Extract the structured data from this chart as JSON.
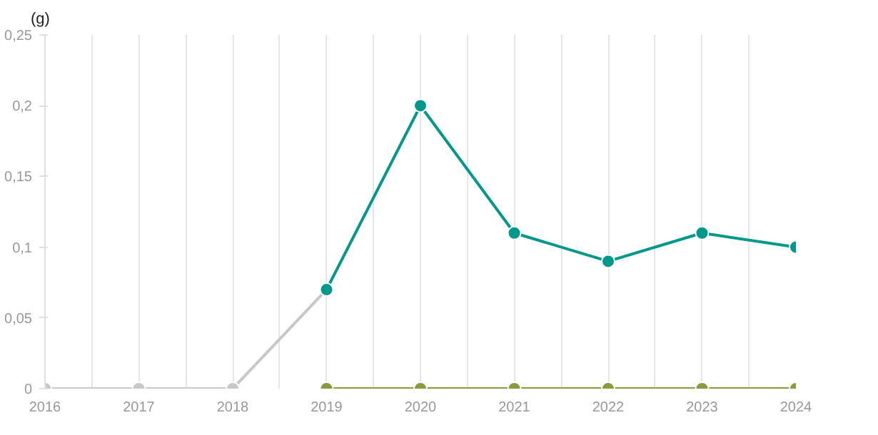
{
  "chart_data": {
    "type": "line",
    "ylabel": "(g)",
    "series": [
      {
        "color": "#c8c8c8",
        "x": [
          2016,
          2017,
          2018,
          2019
        ],
        "values": [
          0,
          0,
          0,
          0.07
        ]
      },
      {
        "color": "#8a9a3c",
        "x": [
          2019,
          2020,
          2021,
          2022,
          2023,
          2024
        ],
        "values": [
          0,
          0,
          0,
          0,
          0,
          0
        ]
      },
      {
        "color": "#00998c",
        "x": [
          2019,
          2020,
          2021,
          2022,
          2023,
          2024
        ],
        "values": [
          0.07,
          0.2,
          0.11,
          0.09,
          0.11,
          0.1
        ]
      }
    ],
    "xlim": [
      2016,
      2024
    ],
    "ylim": [
      0,
      0.25
    ],
    "xticks": [
      2016,
      {
        "value": 2016.5,
        "label": null
      },
      2017,
      {
        "value": 2017.5,
        "label": null
      },
      2018,
      {
        "value": 2018.5,
        "label": null
      },
      2019,
      {
        "value": 2019.5,
        "label": null
      },
      2020,
      {
        "value": 2020.5,
        "label": null
      },
      2021,
      {
        "value": 2021.5,
        "label": null
      },
      2022,
      {
        "value": 2022.5,
        "label": null
      },
      2023,
      {
        "value": 2023.5,
        "label": null
      },
      2024
    ],
    "yticks": [
      {
        "value": 0,
        "label": "0"
      },
      {
        "value": 0.05,
        "label": "0,05"
      },
      {
        "value": 0.1,
        "label": "0,1"
      },
      {
        "value": 0.15,
        "label": "0,15"
      },
      {
        "value": 0.2,
        "label": "0,2"
      },
      {
        "value": 0.25,
        "label": "0,25"
      }
    ],
    "grid": "x",
    "marker": "circle",
    "line_style": "solid"
  }
}
